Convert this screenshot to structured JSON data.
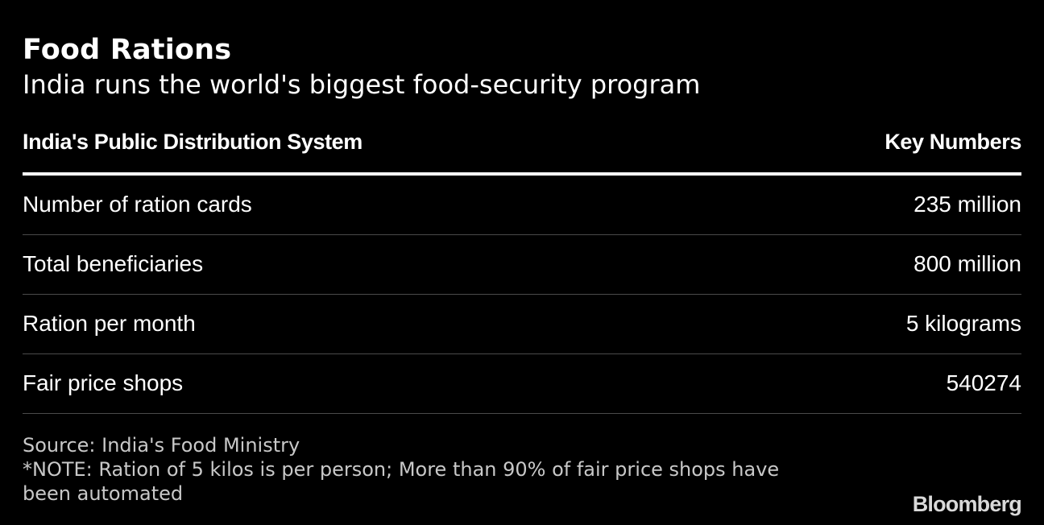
{
  "title": "Food Rations",
  "subtitle": "India runs the world's biggest food-security program",
  "chart_data": {
    "type": "table",
    "columns": [
      "India's Public Distribution System",
      "Key Numbers"
    ],
    "rows": [
      [
        "Number of ration cards",
        "235 million"
      ],
      [
        "Total beneficiaries",
        "800 million"
      ],
      [
        "Ration per month",
        "5 kilograms"
      ],
      [
        "Fair price shops",
        "540274"
      ]
    ],
    "title": "Food Rations",
    "subtitle": "India runs the world's biggest food-security program"
  },
  "footnote": {
    "source": "Source: India's Food Ministry",
    "note": "*NOTE: Ration of 5 kilos is per person; More than 90% of fair price shops have been automated"
  },
  "brand": "Bloomberg",
  "colors": {
    "background": "#000000",
    "text": "#ffffff",
    "muted_text": "#c8c8c8",
    "row_divider": "#4a4a4a"
  }
}
